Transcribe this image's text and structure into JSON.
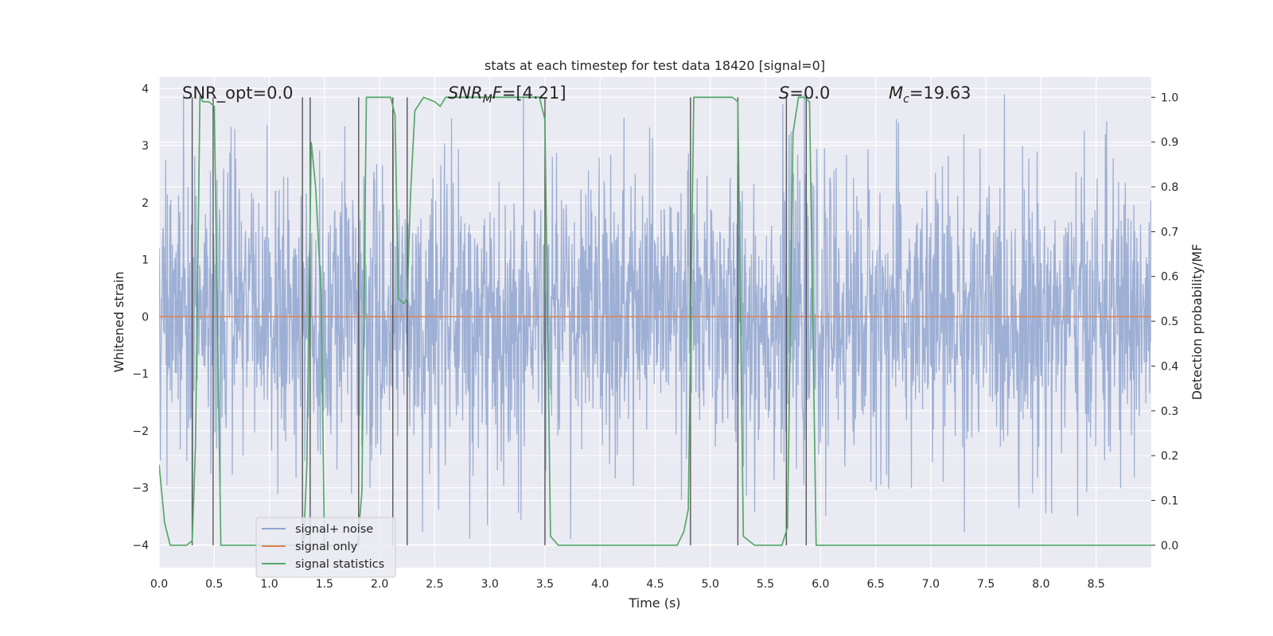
{
  "chart_data": {
    "type": "line",
    "title": "stats at each timestep for test data 18420 [signal=0]",
    "xlabel": "Time (s)",
    "ylabel_left": "Whitened strain",
    "ylabel_right": "Detection probability/MF",
    "xlim": [
      0,
      9.0
    ],
    "ylim_left": [
      -4.4,
      4.2
    ],
    "ylim_right": [
      -0.05,
      1.045
    ],
    "xticks": [
      "0.0",
      "0.5",
      "1.0",
      "1.5",
      "2.0",
      "2.5",
      "3.0",
      "3.5",
      "4.0",
      "4.5",
      "5.0",
      "5.5",
      "6.0",
      "6.5",
      "7.0",
      "7.5",
      "8.0",
      "8.5"
    ],
    "yticks_left": [
      "4",
      "3",
      "2",
      "1",
      "0",
      "−1",
      "−2",
      "−3",
      "−4"
    ],
    "yticks_right": [
      "1.0",
      "0.9",
      "0.8",
      "0.7",
      "0.6",
      "0.5",
      "0.4",
      "0.3",
      "0.2",
      "0.1",
      "0.0"
    ],
    "grid": true,
    "legend_placement": "lower-left",
    "annotations": {
      "snr_opt": "SNR_opt=0.0",
      "snr_mf_italic": "SNR",
      "snr_mf_sub": "M",
      "snr_mf_rest_italic": "F",
      "snr_mf_value": "=[4.21]",
      "s_italic": "S",
      "s_value": "=0.0",
      "mc_italic": "M",
      "mc_sub": "c",
      "mc_value": "=19.63"
    },
    "series": [
      {
        "name": "signal+ noise",
        "axis": "left",
        "color": "#8fa4cf",
        "note": "white noise, amplitude roughly within ±3.9",
        "noise_envelope": [
          -3.9,
          3.9
        ]
      },
      {
        "name": "signal only",
        "axis": "left",
        "color": "#dd8452",
        "x": [
          0,
          9.0
        ],
        "y": [
          0,
          0
        ]
      },
      {
        "name": "signal statistics",
        "axis": "right",
        "color": "#55a868",
        "x": [
          0.0,
          0.05,
          0.1,
          0.2,
          0.25,
          0.3,
          0.33,
          0.37,
          0.4,
          0.45,
          0.5,
          0.52,
          0.56,
          0.6,
          0.7,
          1.0,
          1.25,
          1.31,
          1.34,
          1.38,
          1.42,
          1.47,
          1.5,
          1.6,
          1.8,
          1.84,
          1.88,
          2.0,
          2.1,
          2.14,
          2.17,
          2.22,
          2.25,
          2.28,
          2.32,
          2.4,
          2.5,
          2.55,
          2.6,
          2.7,
          3.0,
          3.3,
          3.45,
          3.5,
          3.55,
          3.62,
          3.7,
          4.0,
          4.5,
          4.7,
          4.76,
          4.8,
          4.85,
          4.9,
          5.0,
          5.2,
          5.25,
          5.3,
          5.4,
          5.6,
          5.65,
          5.7,
          5.75,
          5.8,
          5.85,
          5.9,
          5.96,
          6.0,
          6.5,
          7.0,
          8.0,
          9.0
        ],
        "y": [
          0.18,
          0.05,
          0.0,
          0.0,
          0.0,
          0.01,
          0.22,
          1.0,
          0.99,
          0.99,
          0.98,
          0.65,
          0.0,
          0.0,
          0.0,
          0.0,
          0.0,
          0.0,
          0.18,
          0.9,
          0.8,
          0.56,
          0.0,
          0.0,
          0.0,
          0.12,
          1.0,
          1.0,
          1.0,
          0.96,
          0.55,
          0.54,
          0.55,
          0.78,
          0.97,
          1.0,
          0.99,
          0.98,
          1.0,
          1.0,
          1.0,
          1.0,
          1.0,
          0.95,
          0.02,
          0.0,
          0.0,
          0.0,
          0.0,
          0.0,
          0.03,
          0.08,
          1.0,
          1.0,
          1.0,
          1.0,
          0.99,
          0.02,
          0.0,
          0.0,
          0.0,
          0.04,
          0.92,
          1.0,
          1.0,
          0.99,
          0.0,
          0.0,
          0.0,
          0.0,
          0.0,
          0.0
        ]
      }
    ],
    "vertical_lines_x": [
      0.3,
      0.49,
      1.3,
      1.37,
      1.81,
      2.12,
      2.25,
      3.5,
      4.82,
      5.25,
      5.69,
      5.87
    ]
  },
  "colors": {
    "plot_background": "#eaeaf2",
    "grid": "#ffffff",
    "noise": "#8fa4cf",
    "signal_only": "#dd8452",
    "statistics": "#55a868",
    "vlines": "#555555"
  }
}
